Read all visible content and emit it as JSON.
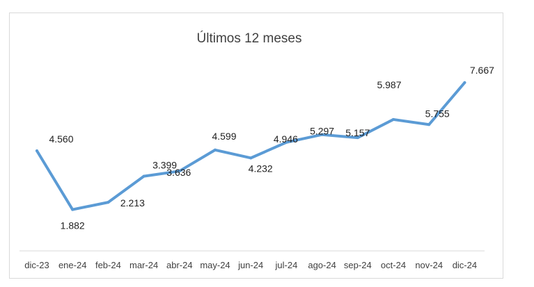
{
  "chart_data": {
    "type": "line",
    "title": "Últimos 12 meses",
    "xlabel": "",
    "ylabel": "",
    "categories": [
      "dic-23",
      "ene-24",
      "feb-24",
      "mar-24",
      "abr-24",
      "may-24",
      "jun-24",
      "jul-24",
      "ago-24",
      "sep-24",
      "oct-24",
      "nov-24",
      "dic-24"
    ],
    "series": [
      {
        "values": [
          4560,
          1882,
          2213,
          3399,
          3636,
          4599,
          4232,
          4946,
          5297,
          5157,
          5987,
          5755,
          7667
        ],
        "labels": [
          "4.560",
          "1.882",
          "2.213",
          "3.399",
          "3.636",
          "4.599",
          "4.232",
          "4.946",
          "5.297",
          "5.157",
          "5.987",
          "5.755",
          "7.667"
        ],
        "color": "#5b9bd5"
      }
    ],
    "ylim": [
      0,
      9500
    ],
    "grid": false,
    "legend": "none",
    "axis_line_color": "#d9d9d9"
  }
}
